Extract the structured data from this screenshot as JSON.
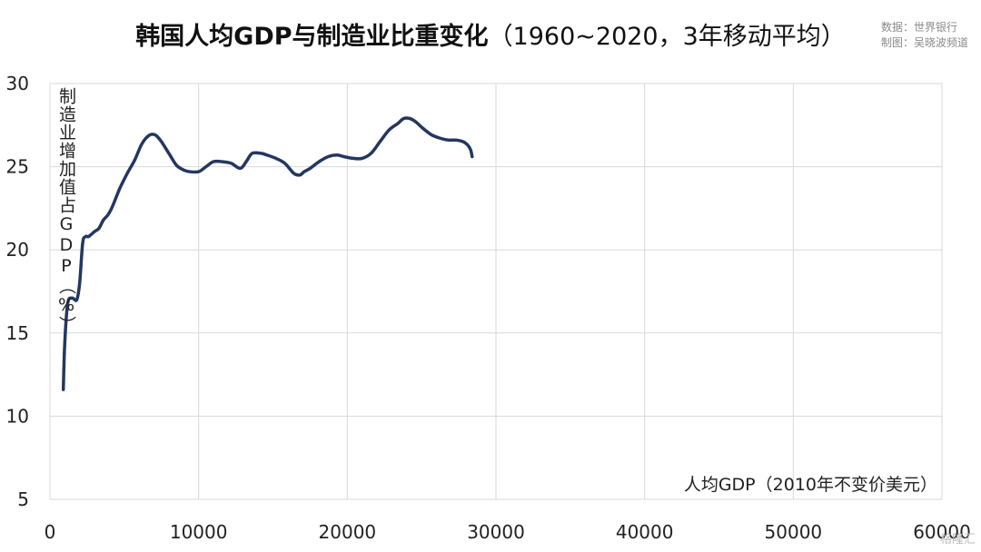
{
  "header": {
    "title_main": "韩国人均GDP与制造业比重变化",
    "title_sub": "（1960~2020，3年移动平均）",
    "source_line1": "数据：世界银行",
    "source_line2": "制图：吴晓波频道"
  },
  "watermark": "格隆汇",
  "chart_data": {
    "type": "line",
    "xlabel": "人均GDP（2010年不变价美元）",
    "ylabel": "制造业增加值占GDP（%）",
    "xlim": [
      0,
      60000
    ],
    "ylim": [
      5,
      30
    ],
    "x_ticks": [
      "0",
      "10000",
      "20000",
      "30000",
      "40000",
      "50000",
      "60000"
    ],
    "y_ticks": [
      "5",
      "10",
      "15",
      "20",
      "25",
      "30"
    ],
    "grid": true,
    "series_color": "#24375f",
    "series": [
      {
        "x": [
          900,
          1000,
          1200,
          1500,
          1800,
          2000,
          2200,
          2400,
          2600,
          3000,
          3300,
          3600,
          3900,
          4200,
          4700,
          5200,
          5700,
          6200,
          6700,
          7100,
          7500,
          8000,
          8500,
          9000,
          9400,
          10000,
          10500,
          11000,
          11600,
          12200,
          12800,
          13200,
          13600,
          14200,
          14600,
          15200,
          15800,
          16400,
          16800,
          17100,
          17500,
          18100,
          18700,
          19300,
          19800,
          20400,
          21000,
          21600,
          22200,
          22800,
          23400,
          23800,
          24200,
          24600,
          25100,
          25700,
          26300,
          26800,
          27300,
          27800,
          28100,
          28300,
          28400
        ],
        "y": [
          11.6,
          14.5,
          16.8,
          17.1,
          17.0,
          18.0,
          20.4,
          20.8,
          20.8,
          21.1,
          21.3,
          21.8,
          22.1,
          22.6,
          23.7,
          24.6,
          25.4,
          26.4,
          26.9,
          26.9,
          26.5,
          25.8,
          25.1,
          24.8,
          24.7,
          24.7,
          25.0,
          25.3,
          25.3,
          25.2,
          24.9,
          25.3,
          25.8,
          25.8,
          25.7,
          25.5,
          25.2,
          24.6,
          24.5,
          24.7,
          24.9,
          25.3,
          25.6,
          25.7,
          25.6,
          25.5,
          25.5,
          25.8,
          26.5,
          27.2,
          27.6,
          27.9,
          27.9,
          27.7,
          27.3,
          26.9,
          26.7,
          26.6,
          26.6,
          26.5,
          26.3,
          26.0,
          25.6
        ]
      }
    ]
  }
}
